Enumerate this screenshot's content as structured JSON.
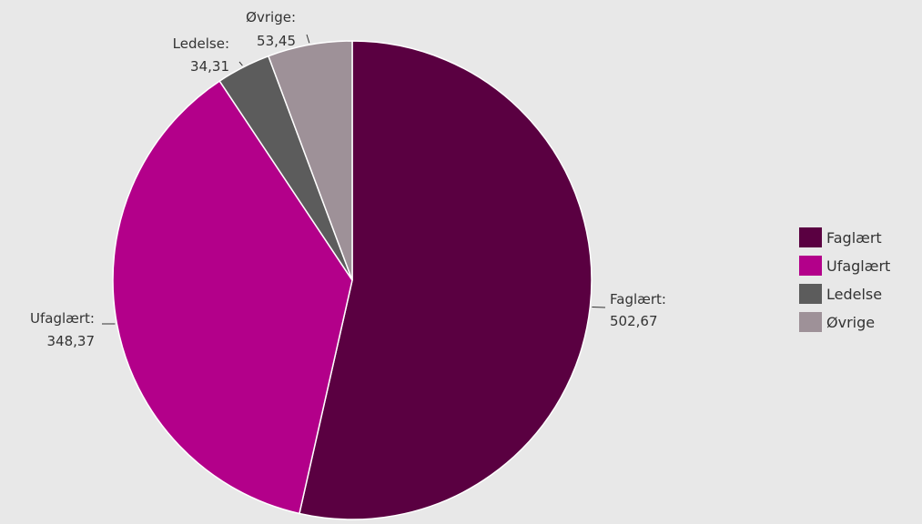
{
  "chart_data": {
    "type": "pie",
    "title": "",
    "slices": [
      {
        "label": "Faglært",
        "value": 502.67,
        "value_label": "502,67",
        "color": "#5a0041"
      },
      {
        "label": "Ufaglært",
        "value": 348.37,
        "value_label": "348,37",
        "color": "#b3008a"
      },
      {
        "label": "Ledelse",
        "value": 34.31,
        "value_label": "34,31",
        "color": "#5c5c5c"
      },
      {
        "label": "Øvrige",
        "value": 53.45,
        "value_label": "53,45",
        "color": "#9e9198"
      }
    ],
    "legend": {
      "placement": "right",
      "entries": [
        "Faglært",
        "Ufaglært",
        "Ledelse",
        "Øvrige"
      ]
    }
  }
}
